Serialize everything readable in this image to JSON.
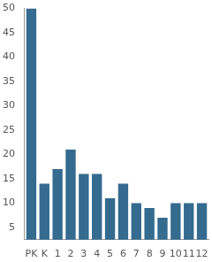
{
  "chart_data": {
    "type": "bar",
    "categories": [
      "PK",
      "K",
      "1",
      "2",
      "3",
      "4",
      "5",
      "6",
      "7",
      "8",
      "9",
      "10",
      "11",
      "12"
    ],
    "values": [
      50,
      14,
      17,
      21,
      16,
      16,
      11,
      14,
      10,
      9,
      7,
      10,
      10,
      10
    ],
    "color": "#346b8e",
    "ylim": [
      2.5,
      50
    ],
    "yticks": [
      5,
      10,
      15,
      20,
      25,
      30,
      35,
      40,
      45,
      50
    ],
    "grid": false
  }
}
